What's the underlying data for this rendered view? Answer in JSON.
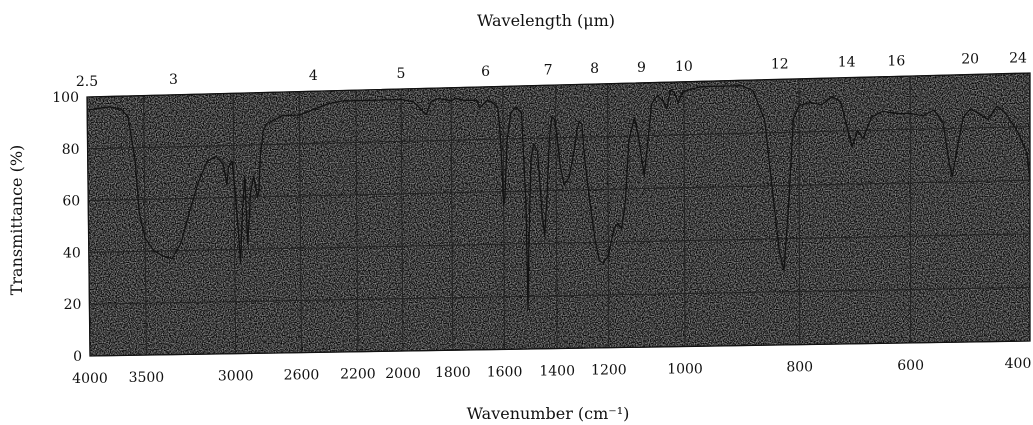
{
  "chart_data": {
    "type": "line",
    "title": "",
    "top_axis_label": "Wavelength (μm)",
    "xlabel": "Wavenumber (cm⁻¹)",
    "ylabel": "Transmittance (%)",
    "xlim": [
      4000,
      400
    ],
    "ylim": [
      0,
      100
    ],
    "grid": true,
    "background": "stippled gray",
    "colors": {
      "line": "#111111",
      "grid": "#222222",
      "paper": "#8e8e8e"
    },
    "x_tick_labels": [
      "4000",
      "3500",
      "3000",
      "2600",
      "2200",
      "2000",
      "1800",
      "1600",
      "1400",
      "1200",
      "1000",
      "800",
      "600",
      "400"
    ],
    "top_tick_labels": [
      "2.5",
      "3",
      "4",
      "5",
      "6",
      "7",
      "8",
      "9",
      "10",
      "12",
      "14",
      "16",
      "20",
      "24"
    ],
    "y_tick_labels": [
      "0",
      "20",
      "40",
      "60",
      "80",
      "100"
    ],
    "series": [
      {
        "points": [
          [
            4000,
            95
          ],
          [
            3800,
            96
          ],
          [
            3700,
            95
          ],
          [
            3640,
            92
          ],
          [
            3580,
            75
          ],
          [
            3550,
            55
          ],
          [
            3500,
            45
          ],
          [
            3450,
            40
          ],
          [
            3400,
            38
          ],
          [
            3350,
            37
          ],
          [
            3300,
            43
          ],
          [
            3250,
            55
          ],
          [
            3200,
            66
          ],
          [
            3150,
            74
          ],
          [
            3100,
            76
          ],
          [
            3060,
            73
          ],
          [
            3040,
            65
          ],
          [
            3030,
            72
          ],
          [
            3010,
            74
          ],
          [
            2990,
            60
          ],
          [
            2965,
            35
          ],
          [
            2950,
            55
          ],
          [
            2935,
            68
          ],
          [
            2920,
            42
          ],
          [
            2900,
            62
          ],
          [
            2880,
            68
          ],
          [
            2860,
            60
          ],
          [
            2850,
            62
          ],
          [
            2840,
            75
          ],
          [
            2820,
            85
          ],
          [
            2800,
            88
          ],
          [
            2700,
            91
          ],
          [
            2600,
            91
          ],
          [
            2500,
            93
          ],
          [
            2400,
            95
          ],
          [
            2300,
            96
          ],
          [
            2200,
            96
          ],
          [
            2100,
            96
          ],
          [
            2000,
            96
          ],
          [
            1950,
            95
          ],
          [
            1930,
            93
          ],
          [
            1900,
            90
          ],
          [
            1880,
            95
          ],
          [
            1850,
            96
          ],
          [
            1800,
            95
          ],
          [
            1780,
            96
          ],
          [
            1750,
            95
          ],
          [
            1720,
            95
          ],
          [
            1700,
            95
          ],
          [
            1690,
            92
          ],
          [
            1660,
            95
          ],
          [
            1640,
            94
          ],
          [
            1620,
            92
          ],
          [
            1610,
            80
          ],
          [
            1600,
            55
          ],
          [
            1595,
            58
          ],
          [
            1585,
            80
          ],
          [
            1570,
            90
          ],
          [
            1550,
            92
          ],
          [
            1530,
            90
          ],
          [
            1515,
            55
          ],
          [
            1510,
            15
          ],
          [
            1505,
            40
          ],
          [
            1495,
            72
          ],
          [
            1485,
            78
          ],
          [
            1470,
            75
          ],
          [
            1455,
            52
          ],
          [
            1445,
            43
          ],
          [
            1435,
            58
          ],
          [
            1425,
            80
          ],
          [
            1415,
            88
          ],
          [
            1405,
            87
          ],
          [
            1395,
            80
          ],
          [
            1385,
            70
          ],
          [
            1370,
            62
          ],
          [
            1350,
            65
          ],
          [
            1330,
            75
          ],
          [
            1320,
            82
          ],
          [
            1310,
            86
          ],
          [
            1300,
            85
          ],
          [
            1290,
            72
          ],
          [
            1270,
            55
          ],
          [
            1250,
            40
          ],
          [
            1235,
            33
          ],
          [
            1220,
            32
          ],
          [
            1200,
            35
          ],
          [
            1185,
            45
          ],
          [
            1175,
            47
          ],
          [
            1165,
            45
          ],
          [
            1155,
            55
          ],
          [
            1145,
            78
          ],
          [
            1130,
            87
          ],
          [
            1120,
            80
          ],
          [
            1105,
            65
          ],
          [
            1095,
            78
          ],
          [
            1085,
            92
          ],
          [
            1070,
            95
          ],
          [
            1055,
            93
          ],
          [
            1045,
            90
          ],
          [
            1035,
            97
          ],
          [
            1025,
            96
          ],
          [
            1015,
            92
          ],
          [
            1005,
            96
          ],
          [
            990,
            97
          ],
          [
            970,
            98
          ],
          [
            950,
            98
          ],
          [
            930,
            98
          ],
          [
            900,
            98
          ],
          [
            880,
            96
          ],
          [
            860,
            85
          ],
          [
            845,
            55
          ],
          [
            835,
            35
          ],
          [
            827,
            28
          ],
          [
            818,
            55
          ],
          [
            810,
            85
          ],
          [
            800,
            90
          ],
          [
            780,
            91
          ],
          [
            760,
            90
          ],
          [
            740,
            93
          ],
          [
            725,
            91
          ],
          [
            712,
            80
          ],
          [
            705,
            74
          ],
          [
            695,
            80
          ],
          [
            685,
            77
          ],
          [
            670,
            85
          ],
          [
            650,
            87
          ],
          [
            620,
            86
          ],
          [
            600,
            86
          ],
          [
            580,
            85
          ],
          [
            560,
            87
          ],
          [
            545,
            82
          ],
          [
            535,
            67
          ],
          [
            530,
            62
          ],
          [
            522,
            72
          ],
          [
            512,
            84
          ],
          [
            500,
            87
          ],
          [
            490,
            86
          ],
          [
            470,
            83
          ],
          [
            455,
            88
          ],
          [
            440,
            85
          ],
          [
            420,
            78
          ],
          [
            405,
            70
          ],
          [
            400,
            60
          ]
        ]
      }
    ]
  }
}
